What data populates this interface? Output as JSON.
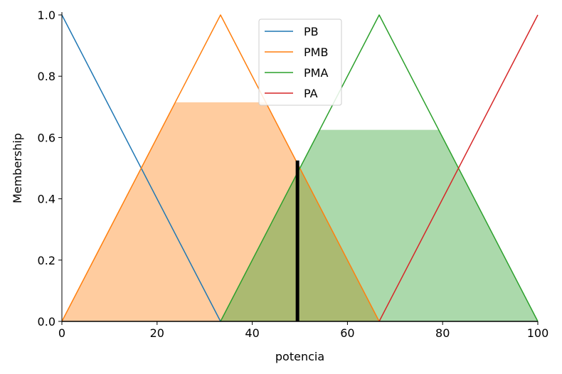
{
  "chart_data": {
    "type": "line",
    "xlabel": "potencia",
    "ylabel": "Membership",
    "xlim": [
      0,
      100
    ],
    "ylim": [
      0,
      1.0
    ],
    "x_ticks": [
      0,
      20,
      40,
      60,
      80,
      100
    ],
    "y_ticks": [
      0.0,
      0.2,
      0.4,
      0.6,
      0.8,
      1.0
    ],
    "x_tick_labels": [
      "0",
      "20",
      "40",
      "60",
      "80",
      "100"
    ],
    "y_tick_labels": [
      "0.0",
      "0.2",
      "0.4",
      "0.6",
      "0.8",
      "1.0"
    ],
    "grid": false,
    "legend_position": "top-center",
    "series": [
      {
        "name": "PB",
        "color": "#1f77b4",
        "x": [
          0,
          33.33
        ],
        "y": [
          1.0,
          0.0
        ]
      },
      {
        "name": "PMB",
        "color": "#ff7f0e",
        "x": [
          0,
          33.33,
          66.67
        ],
        "y": [
          0.0,
          1.0,
          0.0
        ]
      },
      {
        "name": "PMA",
        "color": "#2ca02c",
        "x": [
          33.33,
          66.67,
          100
        ],
        "y": [
          0.0,
          1.0,
          0.0
        ]
      },
      {
        "name": "PA",
        "color": "#d62728",
        "x": [
          66.67,
          100
        ],
        "y": [
          0.0,
          1.0
        ]
      }
    ],
    "activations": [
      {
        "series": "PMB",
        "color": "#ff7f0e",
        "opacity": 0.4,
        "level": 0.715
      },
      {
        "series": "PMA",
        "color": "#2ca02c",
        "opacity": 0.4,
        "level": 0.625
      }
    ],
    "crisp_output": {
      "x": 49.5,
      "y": 0.525,
      "color": "#000000"
    }
  }
}
